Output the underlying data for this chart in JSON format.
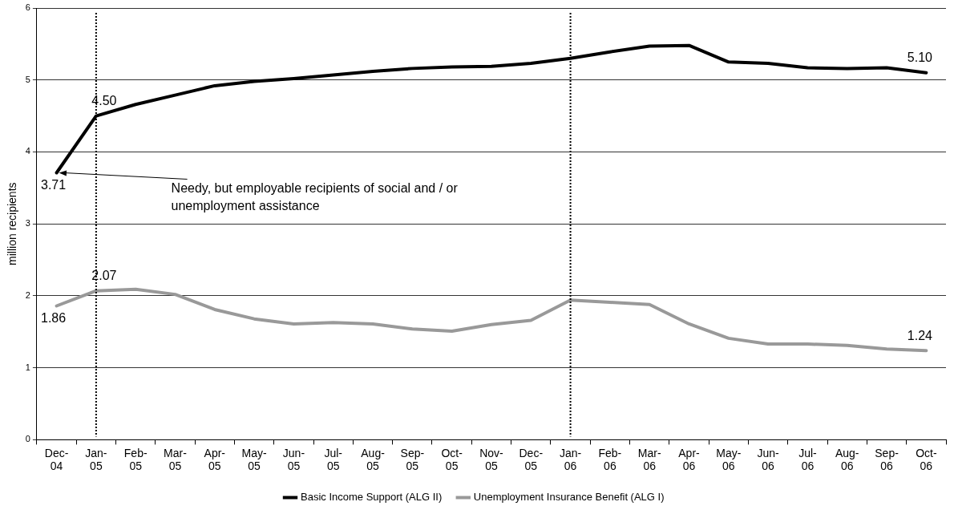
{
  "chart_data": {
    "type": "line",
    "ylabel": "million recipients",
    "categories": [
      "Dec-04",
      "Jan-05",
      "Feb-05",
      "Mar-05",
      "Apr-05",
      "May-05",
      "Jun-05",
      "Jul-05",
      "Aug-05",
      "Sep-05",
      "Oct-05",
      "Nov-05",
      "Dec-05",
      "Jan-06",
      "Feb-06",
      "Mar-06",
      "Apr-06",
      "May-06",
      "Jun-06",
      "Jul-06",
      "Aug-06",
      "Sep-06",
      "Oct-06"
    ],
    "series": [
      {
        "name": "Basic Income Support (ALG II)",
        "color": "#000000",
        "values": [
          3.71,
          4.5,
          4.66,
          4.79,
          4.92,
          4.98,
          5.02,
          5.07,
          5.12,
          5.16,
          5.18,
          5.19,
          5.23,
          5.3,
          5.39,
          5.47,
          5.48,
          5.25,
          5.23,
          5.17,
          5.16,
          5.17,
          5.1
        ],
        "value_labels": [
          "3.71",
          "4.50",
          null,
          null,
          null,
          null,
          null,
          null,
          null,
          null,
          null,
          null,
          null,
          null,
          null,
          null,
          null,
          null,
          null,
          null,
          null,
          null,
          "5.10"
        ]
      },
      {
        "name": "Unemployment Insurance Benefit (ALG I)",
        "color": "#999999",
        "values": [
          1.86,
          2.07,
          2.09,
          2.02,
          1.81,
          1.68,
          1.61,
          1.63,
          1.61,
          1.54,
          1.51,
          1.6,
          1.66,
          1.94,
          1.91,
          1.88,
          1.61,
          1.41,
          1.33,
          1.33,
          1.31,
          1.26,
          1.24
        ],
        "value_labels": [
          "1.86",
          "2.07",
          null,
          null,
          null,
          null,
          null,
          null,
          null,
          null,
          null,
          null,
          null,
          null,
          null,
          null,
          null,
          null,
          null,
          null,
          null,
          null,
          "1.24"
        ]
      }
    ],
    "ylim": [
      0,
      6
    ],
    "yticks": [
      0,
      1,
      2,
      3,
      4,
      5,
      6
    ],
    "grid": "y",
    "legend": "bottom",
    "marker": "none",
    "line_style": "solid",
    "ref_lines": [
      {
        "axis": "x",
        "value": "Jan-05",
        "line_style": "dotted",
        "color": "#000000"
      },
      {
        "axis": "x",
        "value": "Jan-06",
        "line_style": "dotted",
        "color": "#000000"
      }
    ],
    "annotations": [
      {
        "text": "Needy, but employable recipients of social and / or unemployment assistance",
        "x": "Dec-04",
        "y": 3.71
      }
    ]
  }
}
